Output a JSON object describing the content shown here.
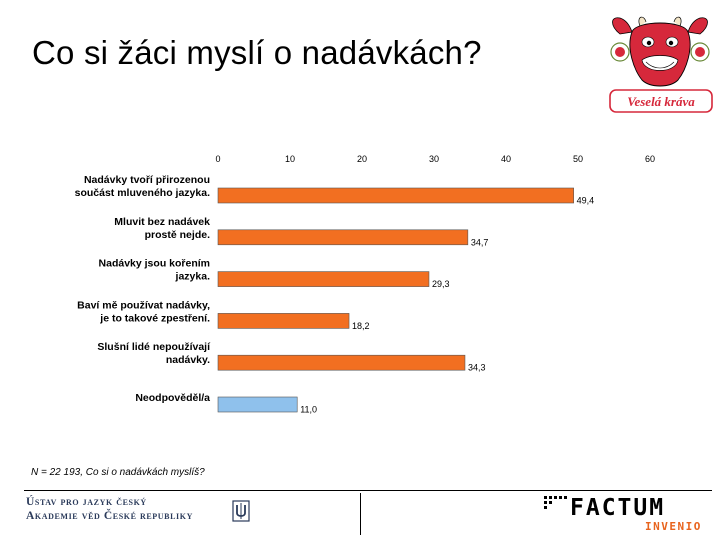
{
  "slide": {
    "title": "Co si žáci myslí o nadávkách?",
    "note": "N = 22 193, Co si o nadávkách myslíš?"
  },
  "logo": {
    "brand_text": "Veselá kráva",
    "icon": "laughing-cow-icon",
    "color": "#d6283b"
  },
  "footer": {
    "institute_line1": "Ústav pro jazyk český",
    "institute_line2": "Akademie věd České republiky",
    "institute_emblem": "ujc-emblem-icon",
    "agency_name": "FACTUM",
    "agency_sub": "INVENIO",
    "agency_colors": {
      "main": "#000000",
      "sub": "#e8641e"
    }
  },
  "chart_data": {
    "type": "bar",
    "orientation": "horizontal",
    "categories": [
      [
        "Nadávky tvoří přirozenou",
        "součást mluveného jazyka."
      ],
      [
        "Mluvit bez nadávek",
        "prostě nejde."
      ],
      [
        "Nadávky jsou kořením",
        "jazyka."
      ],
      [
        "Baví mě používat nadávky,",
        "je to takové zpestření."
      ],
      [
        "Slušní lidé nepoužívají",
        "nadávky."
      ],
      [
        "Neodpověděl/a"
      ]
    ],
    "values": [
      49.4,
      34.7,
      29.3,
      18.2,
      34.3,
      11.0
    ],
    "value_labels": [
      "49,4",
      "34,7",
      "29,3",
      "18,2",
      "34,3",
      "11,0"
    ],
    "bar_colors": [
      "#f26f21",
      "#f26f21",
      "#f26f21",
      "#f26f21",
      "#f26f21",
      "#8fc1ec"
    ],
    "bar_outline": "#555555",
    "xlim": [
      0,
      60
    ],
    "xticks": [
      0,
      10,
      20,
      30,
      40,
      50,
      60
    ],
    "axis_position": "top",
    "grid": false,
    "legend": "none"
  }
}
